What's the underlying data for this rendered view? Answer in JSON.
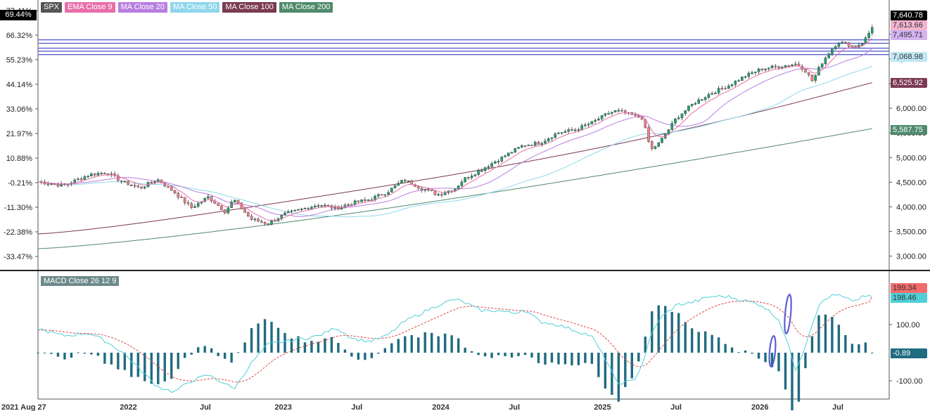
{
  "symbol": "SPX",
  "legend": [
    {
      "label": "SPX",
      "color": "#555555"
    },
    {
      "label": "EMA Close 9",
      "color": "#e86ea8"
    },
    {
      "label": "MA Close 20",
      "color": "#b87ee0"
    },
    {
      "label": "MA Close 50",
      "color": "#8fd7ec"
    },
    {
      "label": "MA Close 100",
      "color": "#7a3a52"
    },
    {
      "label": "MA Close 200",
      "color": "#4f8a6b"
    }
  ],
  "macd_label": "MACD Close 26 12 9",
  "price_badges": [
    {
      "value": "7,640.78",
      "bg": "#000000",
      "fg": "#ffffff",
      "price": 7640.78
    },
    {
      "value": "7,613.66",
      "bg": "#f3b4cf",
      "fg": "#333333",
      "price": 7613.66
    },
    {
      "value": "7,495.71",
      "bg": "#d3b2ef",
      "fg": "#333333",
      "price": 7495.71
    },
    {
      "value": "7,068.98",
      "bg": "#bfe8f4",
      "fg": "#333333",
      "price": 7068.98
    },
    {
      "value": "6,525.92",
      "bg": "#7a3a52",
      "fg": "#ffffff",
      "price": 6525.92
    },
    {
      "value": "5,587.75",
      "bg": "#4f8a6b",
      "fg": "#ffffff",
      "price": 5587.75
    }
  ],
  "left_badge": "69.44%",
  "macd_badges": [
    {
      "value": "199.34",
      "bg": "#f26b6b",
      "fg": "#333333",
      "level": 199.34
    },
    {
      "value": "198.46",
      "bg": "#4ed0d6",
      "fg": "#333333",
      "level": 198.46
    },
    {
      "value": "-0.89",
      "bg": "#1f6b80",
      "fg": "#ffffff",
      "level": -0.89
    }
  ],
  "chart_data": [
    {
      "type": "candlestick",
      "title": "SPX",
      "x_range": [
        "2021 Aug 27",
        "2026 Aug"
      ],
      "x_tick_labels": [
        "2021 Aug 27",
        "2022",
        "Jul",
        "2023",
        "Jul",
        "2024",
        "Jul",
        "2025",
        "Jul",
        "2026",
        "Jul"
      ],
      "y_ticks_right": [
        3000,
        3500,
        4000,
        4500,
        5000,
        5500,
        6000,
        6500,
        7000,
        7500
      ],
      "y_tick_labels_right": [
        "3,000.00",
        "3,500.00",
        "4,000.00",
        "4,500.00",
        "5,000.00",
        "5,500.00",
        "6,000.00",
        "6,500.00",
        "7,000.00",
        "7,500.00"
      ],
      "y_tick_labels_left": [
        "77.41%",
        "66.32%",
        "55.23%",
        "44.14%",
        "33.06%",
        "21.97%",
        "10.88%",
        "-0.21%",
        "-11.30%",
        "-22.38%",
        "-33.47%"
      ],
      "ylim": [
        2850,
        7750
      ],
      "horizontal_lines": [
        7390,
        7320,
        7220,
        7160,
        7090
      ],
      "close_path": [
        [
          0,
          4510
        ],
        [
          0.03,
          4430
        ],
        [
          0.06,
          4650
        ],
        [
          0.08,
          4700
        ],
        [
          0.1,
          4500
        ],
        [
          0.12,
          4380
        ],
        [
          0.14,
          4560
        ],
        [
          0.16,
          4300
        ],
        [
          0.18,
          3980
        ],
        [
          0.2,
          4200
        ],
        [
          0.22,
          3900
        ],
        [
          0.23,
          4150
        ],
        [
          0.25,
          3750
        ],
        [
          0.27,
          3660
        ],
        [
          0.29,
          3850
        ],
        [
          0.31,
          3950
        ],
        [
          0.33,
          4050
        ],
        [
          0.35,
          3970
        ],
        [
          0.37,
          4080
        ],
        [
          0.39,
          4150
        ],
        [
          0.41,
          4300
        ],
        [
          0.43,
          4550
        ],
        [
          0.45,
          4380
        ],
        [
          0.47,
          4250
        ],
        [
          0.49,
          4370
        ],
        [
          0.5,
          4560
        ],
        [
          0.52,
          4750
        ],
        [
          0.54,
          4950
        ],
        [
          0.56,
          5150
        ],
        [
          0.57,
          5250
        ],
        [
          0.59,
          5300
        ],
        [
          0.61,
          5500
        ],
        [
          0.63,
          5560
        ],
        [
          0.65,
          5700
        ],
        [
          0.67,
          5900
        ],
        [
          0.68,
          5950
        ],
        [
          0.7,
          5850
        ],
        [
          0.71,
          5800
        ],
        [
          0.72,
          5150
        ],
        [
          0.73,
          5300
        ],
        [
          0.75,
          5800
        ],
        [
          0.77,
          6100
        ],
        [
          0.79,
          6300
        ],
        [
          0.81,
          6450
        ],
        [
          0.83,
          6650
        ],
        [
          0.85,
          6800
        ],
        [
          0.87,
          6850
        ],
        [
          0.89,
          6900
        ],
        [
          0.9,
          6800
        ],
        [
          0.91,
          6550
        ],
        [
          0.92,
          6900
        ],
        [
          0.93,
          7150
        ],
        [
          0.94,
          7350
        ],
        [
          0.95,
          7300
        ],
        [
          0.96,
          7250
        ],
        [
          0.97,
          7350
        ],
        [
          0.98,
          7640.78
        ]
      ],
      "series": [
        {
          "name": "EMA Close 9",
          "color": "#e86ea8",
          "last": 7613.66
        },
        {
          "name": "MA Close 20",
          "color": "#b87ee0",
          "last": 7495.71
        },
        {
          "name": "MA Close 50",
          "color": "#8fd7ec",
          "last": 7068.98
        },
        {
          "name": "MA Close 100",
          "color": "#7a3a52",
          "last": 6525.92
        },
        {
          "name": "MA Close 200",
          "color": "#4f8a6b",
          "last": 5587.75
        }
      ]
    },
    {
      "type": "bar",
      "title": "MACD Close 26 12 9",
      "y_ticks": [
        100,
        -100
      ],
      "y_tick_labels": [
        "100.00",
        "-100.00"
      ],
      "ylim": [
        -160,
        240
      ],
      "macd_path": [
        [
          0,
          85
        ],
        [
          0.03,
          60
        ],
        [
          0.06,
          70
        ],
        [
          0.08,
          40
        ],
        [
          0.1,
          0
        ],
        [
          0.12,
          -60
        ],
        [
          0.14,
          -120
        ],
        [
          0.16,
          -140
        ],
        [
          0.18,
          -100
        ],
        [
          0.2,
          -80
        ],
        [
          0.22,
          -110
        ],
        [
          0.23,
          -130
        ],
        [
          0.25,
          -40
        ],
        [
          0.27,
          30
        ],
        [
          0.29,
          40
        ],
        [
          0.31,
          50
        ],
        [
          0.33,
          60
        ],
        [
          0.35,
          90
        ],
        [
          0.37,
          50
        ],
        [
          0.39,
          40
        ],
        [
          0.41,
          60
        ],
        [
          0.43,
          110
        ],
        [
          0.45,
          140
        ],
        [
          0.47,
          170
        ],
        [
          0.49,
          190
        ],
        [
          0.5,
          180
        ],
        [
          0.52,
          150
        ],
        [
          0.54,
          150
        ],
        [
          0.56,
          140
        ],
        [
          0.57,
          155
        ],
        [
          0.59,
          110
        ],
        [
          0.61,
          100
        ],
        [
          0.63,
          80
        ],
        [
          0.65,
          60
        ],
        [
          0.67,
          -40
        ],
        [
          0.68,
          -110
        ],
        [
          0.7,
          -100
        ],
        [
          0.71,
          -40
        ],
        [
          0.72,
          60
        ],
        [
          0.73,
          120
        ],
        [
          0.75,
          170
        ],
        [
          0.77,
          180
        ],
        [
          0.79,
          200
        ],
        [
          0.81,
          200
        ],
        [
          0.83,
          185
        ],
        [
          0.85,
          170
        ],
        [
          0.87,
          120
        ],
        [
          0.88,
          40
        ],
        [
          0.89,
          -60
        ],
        [
          0.9,
          10
        ],
        [
          0.91,
          110
        ],
        [
          0.92,
          180
        ],
        [
          0.93,
          200
        ],
        [
          0.94,
          205
        ],
        [
          0.95,
          190
        ],
        [
          0.96,
          185
        ],
        [
          0.97,
          200
        ],
        [
          0.98,
          198.46
        ]
      ],
      "signal_last": 199.34,
      "histogram_last": -0.89,
      "series": [
        {
          "name": "MACD",
          "color": "#4ed0d6"
        },
        {
          "name": "Signal",
          "color": "#e04646"
        },
        {
          "name": "Histogram",
          "color": "#1f6b80"
        }
      ]
    }
  ]
}
